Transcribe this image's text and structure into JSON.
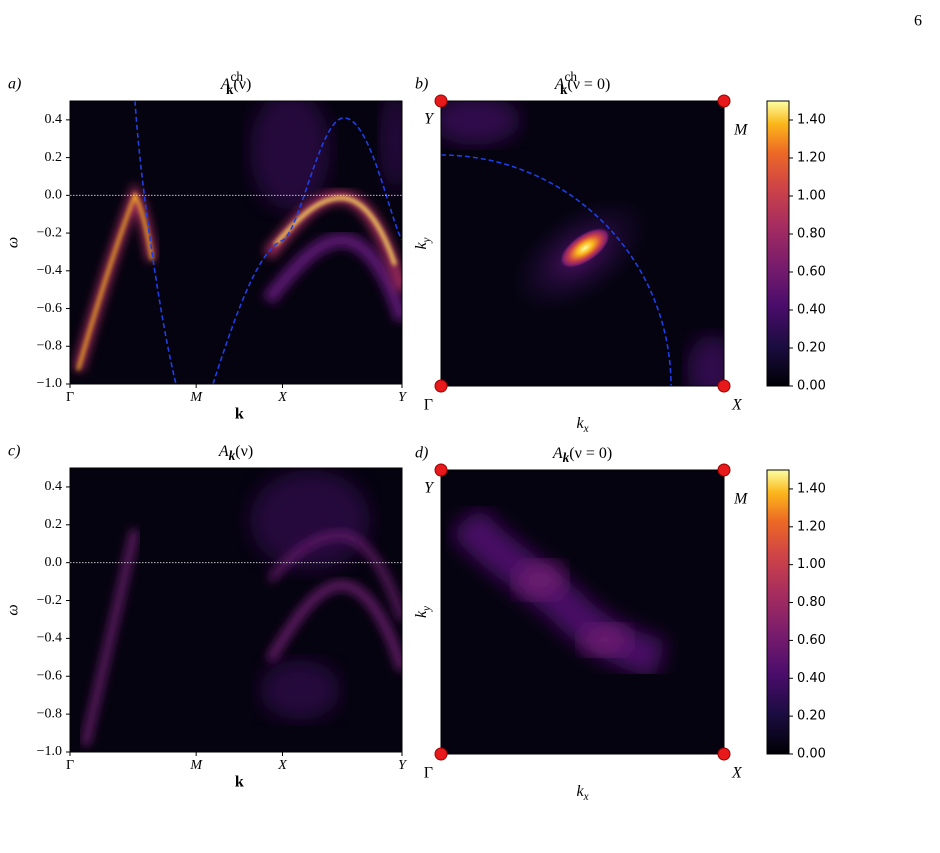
{
  "page_number": "6",
  "chart_data": [
    {
      "type": "heatmap",
      "panel_label": "a)",
      "title": {
        "base": "A",
        "sub": "k",
        "sup": "ch",
        "arg": "(ν)"
      },
      "xlabel": "k",
      "ylabel": "ω",
      "xlim": [
        0,
        1
      ],
      "xticks": [
        {
          "value": 0,
          "label": "Γ"
        },
        {
          "value": 0.38,
          "label": "M"
        },
        {
          "value": 0.64,
          "label": "X"
        },
        {
          "value": 1,
          "label": "Y"
        }
      ],
      "ylim": [
        -1.0,
        0.5
      ],
      "yticks": [
        0.4,
        0.2,
        {
          "value": 0,
          "label": "0.0"
        },
        {
          "value": -0.2,
          "label": "−0.2"
        },
        {
          "value": -0.4,
          "label": "−0.4"
        },
        {
          "value": -0.6,
          "label": "−0.6"
        },
        {
          "value": -0.8,
          "label": "−0.8"
        },
        {
          "value": -1.0,
          "label": "−1.0"
        }
      ],
      "reference_line": 0
    },
    {
      "type": "heatmap",
      "panel_label": "b)",
      "title": {
        "base": "A",
        "sub": "k",
        "sup": "ch",
        "arg": "(ν = 0)"
      },
      "xlabel": {
        "base": "k",
        "sub": "x"
      },
      "ylabel": {
        "base": "k",
        "sub": "y"
      },
      "corner_labels": {
        "bottom_left": "Γ",
        "bottom_right": "X",
        "top_left": "Y",
        "top_right": "M"
      },
      "colorbar": {
        "lim": [
          0,
          1.5
        ],
        "ticks": [
          {
            "value": 0,
            "label": "0.00"
          },
          {
            "value": 0.2,
            "label": "0.20"
          },
          {
            "value": 0.4,
            "label": "0.40"
          },
          {
            "value": 0.6,
            "label": "0.60"
          },
          {
            "value": 0.8,
            "label": "0.80"
          },
          {
            "value": 1.0,
            "label": "1.00"
          },
          {
            "value": 1.2,
            "label": "1.20"
          },
          {
            "value": 1.4,
            "label": "1.40"
          }
        ]
      }
    },
    {
      "type": "heatmap",
      "panel_label": "c)",
      "title": {
        "base": "A",
        "sub": "k",
        "arg": "(ν)"
      },
      "xlabel": "k",
      "ylabel": "ω",
      "xlim": [
        0,
        1
      ],
      "xticks": [
        {
          "value": 0,
          "label": "Γ"
        },
        {
          "value": 0.38,
          "label": "M"
        },
        {
          "value": 0.64,
          "label": "X"
        },
        {
          "value": 1,
          "label": "Y"
        }
      ],
      "ylim": [
        -1.0,
        0.5
      ],
      "yticks": [
        0.4,
        0.2,
        {
          "value": 0,
          "label": "0.0"
        },
        {
          "value": -0.2,
          "label": "−0.2"
        },
        {
          "value": -0.4,
          "label": "−0.4"
        },
        {
          "value": -0.6,
          "label": "−0.6"
        },
        {
          "value": -0.8,
          "label": "−0.8"
        },
        {
          "value": -1.0,
          "label": "−1.0"
        }
      ],
      "reference_line": 0
    },
    {
      "type": "heatmap",
      "panel_label": "d)",
      "title": {
        "base": "A",
        "sub": "k",
        "arg": "(ν = 0)"
      },
      "xlabel": {
        "base": "k",
        "sub": "x"
      },
      "ylabel": {
        "base": "k",
        "sub": "y"
      },
      "corner_labels": {
        "bottom_left": "Γ",
        "bottom_right": "X",
        "top_left": "Y",
        "top_right": "M"
      },
      "colorbar": {
        "lim": [
          0,
          1.5
        ],
        "ticks": [
          {
            "value": 0,
            "label": "0.00"
          },
          {
            "value": 0.2,
            "label": "0.20"
          },
          {
            "value": 0.4,
            "label": "0.40"
          },
          {
            "value": 0.6,
            "label": "0.60"
          },
          {
            "value": 0.8,
            "label": "0.80"
          },
          {
            "value": 1.0,
            "label": "1.00"
          },
          {
            "value": 1.2,
            "label": "1.20"
          },
          {
            "value": 1.4,
            "label": "1.40"
          }
        ]
      }
    }
  ]
}
